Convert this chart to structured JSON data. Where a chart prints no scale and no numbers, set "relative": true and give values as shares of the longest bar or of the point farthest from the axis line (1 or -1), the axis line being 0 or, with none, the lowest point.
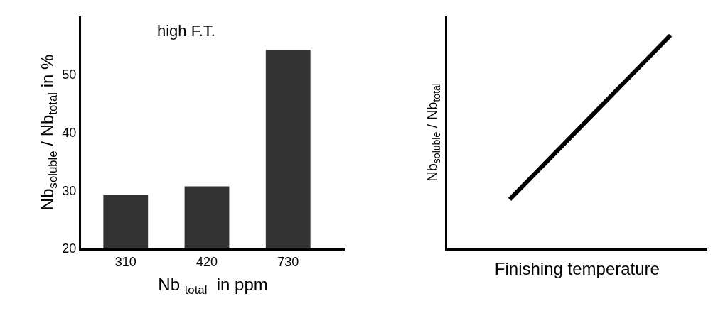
{
  "chart_data": [
    {
      "type": "bar",
      "title": "high F.T.",
      "xlabel": "Nb $_{total}$  in ppm",
      "ylabel": "Nb$_{soluble}$ / Nb$_{total}$ in %",
      "categories": [
        "310",
        "420",
        "730"
      ],
      "values": [
        29.2,
        30.7,
        54.2
      ],
      "color": "#333333",
      "ylim": [
        20,
        60
      ],
      "yticks": [
        20,
        30,
        40,
        50
      ]
    },
    {
      "type": "line",
      "xlabel": "Finishing temperature",
      "ylabel": "Nb$_{soluble}$ / Nb$_{total}$",
      "categories": [
        null,
        null
      ],
      "values": [
        0.23,
        1
      ],
      "color": "#000000",
      "relative": true
    }
  ]
}
